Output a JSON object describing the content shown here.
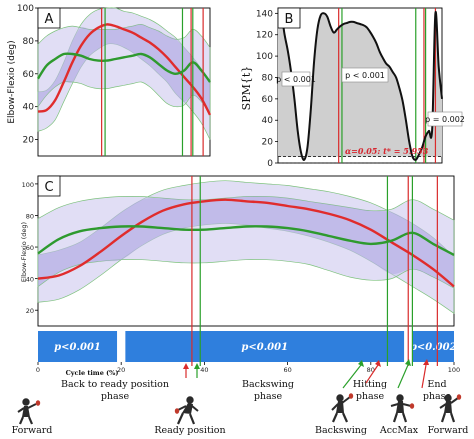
{
  "colors": {
    "red": "#e02c2c",
    "green": "#2e9a2e",
    "band_fill": "#c9c3ec",
    "band_inner": "#aaa2e0",
    "band_edge": "#7ec27e",
    "spm_fill": "#cfcfcf",
    "phase_bar": "#2f7fdd",
    "vline_red": "#d92b2b",
    "vline_green": "#2aa02a"
  },
  "chart_data": [
    {
      "id": "A",
      "type": "line",
      "panel_label": "A",
      "ylabel": "Elbow-Flexio (deg)",
      "xlim": [
        0,
        100
      ],
      "ylim": [
        10,
        100
      ],
      "yticks": [
        20,
        40,
        60,
        80,
        100
      ],
      "series": [
        {
          "color": "red",
          "x": [
            0,
            5,
            10,
            15,
            20,
            25,
            30,
            35,
            40,
            45,
            50,
            55,
            60,
            65,
            70,
            75,
            80,
            85,
            90,
            95,
            100
          ],
          "y": [
            37,
            38,
            44,
            55,
            67,
            77,
            84,
            88,
            90,
            89,
            87,
            85,
            82,
            79,
            75,
            70,
            64,
            58,
            52,
            45,
            35
          ],
          "band": [
            [
              25,
              49
            ],
            [
              27,
              50
            ],
            [
              32,
              56
            ],
            [
              43,
              67
            ],
            [
              54,
              80
            ],
            [
              64,
              90
            ],
            [
              71,
              96
            ],
            [
              75,
              99
            ],
            [
              78,
              100
            ],
            [
              78,
              100
            ],
            [
              76,
              98
            ],
            [
              73,
              97
            ],
            [
              69,
              95
            ],
            [
              65,
              93
            ],
            [
              60,
              90
            ],
            [
              55,
              86
            ],
            [
              48,
              82
            ],
            [
              43,
              76
            ],
            [
              37,
              70
            ],
            [
              30,
              63
            ],
            [
              20,
              54
            ]
          ]
        },
        {
          "color": "green",
          "x": [
            0,
            5,
            10,
            15,
            20,
            25,
            30,
            35,
            40,
            45,
            50,
            55,
            60,
            65,
            70,
            75,
            80,
            85,
            90,
            95,
            100
          ],
          "y": [
            57,
            65,
            69,
            72,
            72,
            71,
            69,
            68,
            68,
            69,
            70,
            71,
            72,
            70,
            66,
            62,
            60,
            62,
            67,
            62,
            55
          ],
          "band": [
            [
              40,
              78
            ],
            [
              47,
              83
            ],
            [
              52,
              86
            ],
            [
              55,
              88
            ],
            [
              55,
              89
            ],
            [
              54,
              88
            ],
            [
              52,
              87
            ],
            [
              51,
              87
            ],
            [
              51,
              87
            ],
            [
              52,
              87
            ],
            [
              53,
              88
            ],
            [
              54,
              89
            ],
            [
              55,
              90
            ],
            [
              52,
              88
            ],
            [
              47,
              86
            ],
            [
              42,
              83
            ],
            [
              40,
              81
            ],
            [
              41,
              82
            ],
            [
              47,
              87
            ],
            [
              43,
              83
            ],
            [
              36,
              76
            ]
          ]
        }
      ],
      "vlines": [
        {
          "x": 37,
          "color": "red"
        },
        {
          "x": 39,
          "color": "green"
        },
        {
          "x": 84,
          "color": "green"
        },
        {
          "x": 89,
          "color": "red"
        },
        {
          "x": 90,
          "color": "green"
        },
        {
          "x": 96,
          "color": "red"
        }
      ]
    },
    {
      "id": "B",
      "type": "area",
      "panel_label": "B",
      "ylabel": "SPM{t}",
      "xlim": [
        0,
        100
      ],
      "ylim": [
        0,
        145
      ],
      "yticks": [
        0,
        20,
        40,
        60,
        80,
        100,
        120,
        140
      ],
      "threshold": 5.953,
      "threshold_label": "α=0.05:  t* = 5.953",
      "p_labels": [
        "p < 0.001",
        "p < 0.001",
        "p = 0.002"
      ],
      "series": [
        {
          "name": "SPM{t}",
          "x": [
            0,
            2,
            4,
            6,
            8,
            10,
            12,
            14,
            16,
            18,
            20,
            22,
            24,
            26,
            28,
            30,
            32,
            34,
            36,
            38,
            40,
            42,
            44,
            46,
            48,
            50,
            52,
            54,
            56,
            58,
            60,
            62,
            64,
            66,
            68,
            70,
            72,
            74,
            76,
            78,
            80,
            82,
            84,
            86,
            88,
            90,
            92,
            94,
            96,
            98,
            100
          ],
          "y": [
            140,
            140,
            120,
            105,
            85,
            60,
            30,
            10,
            3,
            15,
            50,
            95,
            125,
            138,
            140,
            137,
            128,
            122,
            125,
            128,
            130,
            131,
            132,
            132,
            131,
            130,
            129,
            127,
            123,
            118,
            112,
            104,
            98,
            93,
            90,
            85,
            80,
            70,
            58,
            40,
            20,
            6,
            3,
            8,
            15,
            25,
            30,
            32,
            140,
            90,
            60
          ]
        }
      ],
      "vlines": [
        {
          "x": 37,
          "color": "red"
        },
        {
          "x": 39,
          "color": "green"
        },
        {
          "x": 84,
          "color": "green"
        },
        {
          "x": 89,
          "color": "red"
        },
        {
          "x": 90,
          "color": "green"
        },
        {
          "x": 96,
          "color": "red"
        }
      ]
    },
    {
      "id": "C",
      "type": "line",
      "panel_label": "C",
      "ylabel": "Elbow-Flexio (deg)",
      "xlabel": "Cycle time (%)",
      "xlim": [
        0,
        100
      ],
      "ylim": [
        10,
        105
      ],
      "yticks": [
        20,
        40,
        60,
        80,
        100
      ],
      "xticks": [
        0,
        20,
        40,
        60,
        80,
        100
      ],
      "series": [
        {
          "color": "red",
          "x": [
            0,
            5,
            10,
            15,
            20,
            25,
            30,
            35,
            40,
            45,
            50,
            55,
            60,
            65,
            70,
            75,
            80,
            85,
            90,
            95,
            100
          ],
          "y": [
            40,
            42,
            48,
            57,
            67,
            76,
            83,
            87,
            89,
            90,
            89,
            88,
            86,
            84,
            81,
            77,
            71,
            63,
            55,
            46,
            35
          ],
          "band": [
            [
              25,
              55
            ],
            [
              27,
              58
            ],
            [
              33,
              63
            ],
            [
              42,
              72
            ],
            [
              52,
              82
            ],
            [
              61,
              90
            ],
            [
              68,
              96
            ],
            [
              72,
              99
            ],
            [
              74,
              101
            ],
            [
              75,
              102
            ],
            [
              74,
              101
            ],
            [
              72,
              100
            ],
            [
              70,
              99
            ],
            [
              67,
              97
            ],
            [
              63,
              95
            ],
            [
              58,
              92
            ],
            [
              51,
              88
            ],
            [
              43,
              82
            ],
            [
              35,
              75
            ],
            [
              27,
              66
            ],
            [
              18,
              54
            ]
          ]
        },
        {
          "color": "green",
          "x": [
            0,
            5,
            10,
            15,
            20,
            25,
            30,
            35,
            40,
            45,
            50,
            55,
            60,
            65,
            70,
            75,
            80,
            85,
            90,
            95,
            100
          ],
          "y": [
            56,
            65,
            70,
            72,
            73,
            73,
            72,
            71,
            71,
            72,
            73,
            73,
            72,
            70,
            67,
            64,
            62,
            64,
            69,
            62,
            55
          ],
          "band": [
            [
              35,
              78
            ],
            [
              44,
              85
            ],
            [
              49,
              89
            ],
            [
              51,
              91
            ],
            [
              52,
              92
            ],
            [
              52,
              92
            ],
            [
              51,
              91
            ],
            [
              50,
              90
            ],
            [
              50,
              90
            ],
            [
              51,
              91
            ],
            [
              52,
              92
            ],
            [
              52,
              92
            ],
            [
              51,
              91
            ],
            [
              49,
              89
            ],
            [
              45,
              87
            ],
            [
              41,
              85
            ],
            [
              39,
              83
            ],
            [
              40,
              84
            ],
            [
              46,
              90
            ],
            [
              41,
              84
            ],
            [
              34,
              77
            ]
          ]
        }
      ],
      "vlines": [
        {
          "x": 37,
          "color": "red"
        },
        {
          "x": 39,
          "color": "green"
        },
        {
          "x": 84,
          "color": "green"
        },
        {
          "x": 89,
          "color": "red"
        },
        {
          "x": 90,
          "color": "green"
        },
        {
          "x": 96,
          "color": "red"
        }
      ],
      "phase_bands": [
        {
          "start": 0,
          "end": 19,
          "label": "p<0.001"
        },
        {
          "start": 21,
          "end": 88,
          "label": "p<0.001"
        },
        {
          "start": 90,
          "end": 100,
          "label": "p<0.002"
        }
      ]
    }
  ],
  "phases": {
    "back_to_ready": "Back to ready position",
    "back_to_ready_2": "phase",
    "backswing": "Backswing",
    "backswing_2": "phase",
    "hitting": "Hitting",
    "hitting_2": "phase",
    "end": "End",
    "end_2": "phase"
  },
  "poses": {
    "forward_left": "Forward",
    "ready": "Ready position",
    "backswing": "Backswing",
    "accmax": "AccMax",
    "forward_right": "Forward"
  }
}
